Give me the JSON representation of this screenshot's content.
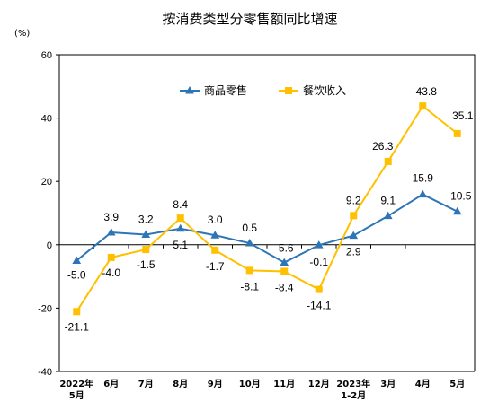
{
  "chart_data": {
    "type": "line",
    "title": "按消费类型分零售额同比增速",
    "unit_label": "(%)",
    "ylim": [
      -40,
      60
    ],
    "yticks": [
      -40,
      -20,
      0,
      20,
      40,
      60
    ],
    "grid": false,
    "legend_position": "top-center",
    "categories": [
      {
        "line1": "2022年",
        "line2": "5月"
      },
      {
        "line1": "6月",
        "line2": ""
      },
      {
        "line1": "7月",
        "line2": ""
      },
      {
        "line1": "8月",
        "line2": ""
      },
      {
        "line1": "9月",
        "line2": ""
      },
      {
        "line1": "10月",
        "line2": ""
      },
      {
        "line1": "11月",
        "line2": ""
      },
      {
        "line1": "12月",
        "line2": ""
      },
      {
        "line1": "2023年",
        "line2": "1-2月"
      },
      {
        "line1": "3月",
        "line2": ""
      },
      {
        "line1": "4月",
        "line2": ""
      },
      {
        "line1": "5月",
        "line2": ""
      }
    ],
    "series": [
      {
        "name": "商品零售",
        "color": "#2e75b6",
        "marker": "triangle",
        "values": [
          -5.0,
          3.9,
          3.2,
          5.1,
          3.0,
          0.5,
          -5.6,
          -0.1,
          2.9,
          9.1,
          15.9,
          10.5
        ],
        "labels": [
          "-5.0",
          "3.9",
          "3.2",
          "5.1",
          "3.0",
          "0.5",
          "-5.6",
          "-0.1",
          "2.9",
          "9.1",
          "15.9",
          "10.5"
        ]
      },
      {
        "name": "餐饮收入",
        "color": "#ffc000",
        "marker": "square",
        "values": [
          -21.1,
          -4.0,
          -1.5,
          8.4,
          -1.7,
          -8.1,
          -8.4,
          -14.1,
          9.2,
          26.3,
          43.8,
          35.1
        ],
        "labels": [
          "-21.1",
          "-4.0",
          "-1.5",
          "8.4",
          "-1.7",
          "-8.1",
          "-8.4",
          "-14.1",
          "9.2",
          "26.3",
          "43.8",
          "35.1"
        ]
      }
    ]
  }
}
